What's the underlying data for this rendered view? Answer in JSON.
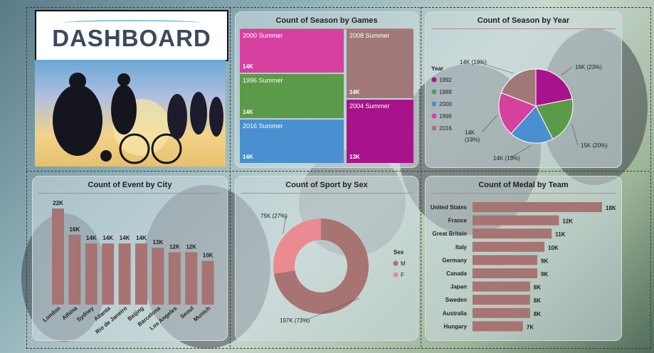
{
  "logo": {
    "text": "DASHBOARD"
  },
  "panels": {
    "games": "Count of Season by Games",
    "year": "Count of Season by Year",
    "city": "Count of Event by City",
    "sex": "Count of Sport by Sex",
    "team": "Count of Medal by Team"
  },
  "chart_data": [
    {
      "type": "treemap",
      "title": "Count of Season by Games",
      "categories": [
        "2000 Summer",
        "2008 Summer",
        "1996 Summer",
        "2004 Summer",
        "2016 Summer"
      ],
      "values": [
        14,
        14,
        14,
        13,
        14
      ],
      "labels": [
        "14K",
        "14K",
        "14K",
        "13K",
        "14K"
      ],
      "colors": [
        "#d6409f",
        "#a07878",
        "#5b9a48",
        "#a8138c",
        "#4a8fcf"
      ]
    },
    {
      "type": "pie",
      "title": "Count of Season by Year",
      "legend_title": "Year",
      "legend": [
        "1992",
        "1988",
        "2000",
        "1996",
        "2016"
      ],
      "values": [
        16,
        15,
        14,
        14,
        14
      ],
      "labels": [
        "16K (23%)",
        "15K (20%)",
        "14K (19%)",
        "14K\n(19%)",
        "14K (19%)"
      ],
      "colors": [
        "#a8138c",
        "#5b9a48",
        "#4a8fcf",
        "#d6409f",
        "#a07878"
      ]
    },
    {
      "type": "bar",
      "title": "Count of Event by City",
      "categories": [
        "London",
        "Athina",
        "Sydney",
        "Atlanta",
        "Rio de Janeiro",
        "Beijing",
        "Barcelona",
        "Los Angeles",
        "Seoul",
        "Munich"
      ],
      "values": [
        22,
        16,
        14,
        14,
        14,
        14,
        13,
        12,
        12,
        10
      ],
      "labels": [
        "22K",
        "16K",
        "14K",
        "14K",
        "14K",
        "14K",
        "13K",
        "12K",
        "12K",
        "10K"
      ],
      "ylim": [
        0,
        22
      ],
      "color": "#a87373"
    },
    {
      "type": "donut",
      "title": "Count of Sport by Sex",
      "legend_title": "Sex",
      "legend": [
        "M",
        "F"
      ],
      "values": [
        197,
        75
      ],
      "labels": [
        "197K (73%)",
        "75K (27%)"
      ],
      "colors": [
        "#a87373",
        "#e98b91"
      ]
    },
    {
      "type": "bar-horizontal",
      "title": "Count of Medal by Team",
      "categories": [
        "United States",
        "France",
        "Great Britain",
        "Italy",
        "Germany",
        "Canada",
        "Japan",
        "Sweden",
        "Australia",
        "Hungary"
      ],
      "values": [
        18,
        12,
        11,
        10,
        9,
        9,
        8,
        8,
        8,
        7
      ],
      "labels": [
        "18K",
        "12K",
        "11K",
        "10K",
        "9K",
        "9K",
        "8K",
        "8K",
        "8K",
        "7K"
      ],
      "xlim": [
        0,
        18
      ],
      "color": "#a87373"
    }
  ]
}
